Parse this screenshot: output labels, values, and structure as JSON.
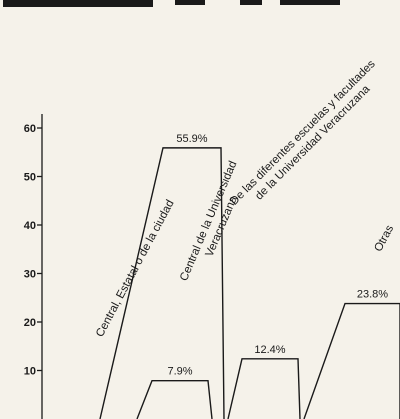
{
  "chart_data": {
    "type": "bar",
    "title": "",
    "xlabel": "",
    "ylabel": "",
    "ylim": [
      0,
      60
    ],
    "y_ticks": [
      10,
      20,
      30,
      40,
      50,
      60
    ],
    "y_tick_labels": [
      "10",
      "20",
      "30",
      "40",
      "50",
      "60"
    ],
    "style": "stepped outline bars with diagonal sides",
    "categories": [
      [
        "Central, Estatal o de la ciudad"
      ],
      [
        "Central de la Universidad",
        "Veracruzana"
      ],
      [
        "De las diferentes escuelas y facultades",
        "de la Universidad Veracruzana"
      ],
      [
        "Otras"
      ]
    ],
    "values": [
      55.9,
      7.9,
      12.4,
      23.8
    ],
    "value_labels": [
      "55.9%",
      "7.9%",
      "12.4%",
      "23.8%"
    ]
  }
}
